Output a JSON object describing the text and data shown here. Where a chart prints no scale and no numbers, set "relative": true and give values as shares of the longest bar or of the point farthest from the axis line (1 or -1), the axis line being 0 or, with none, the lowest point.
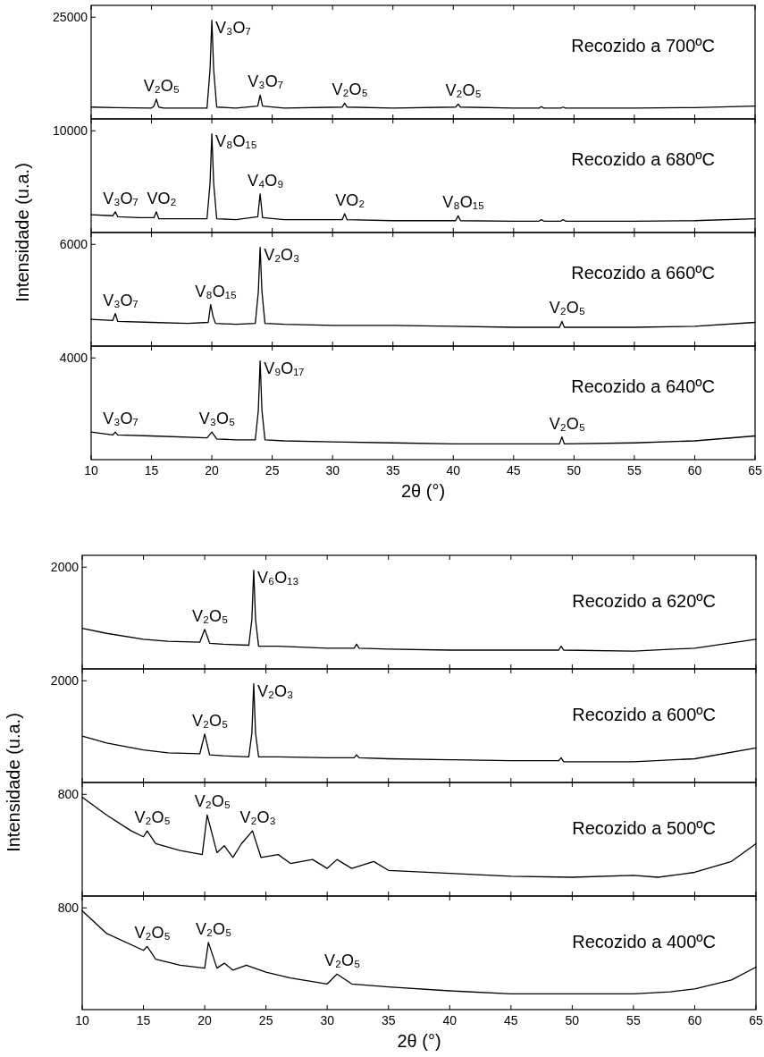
{
  "chart_data": [
    {
      "type": "line",
      "title": "Recozido a 700ºC",
      "ylabel": "Intensidade (u.a.)",
      "relative": true,
      "xlim": [
        10,
        65
      ],
      "xticks": [
        10,
        15,
        20,
        25,
        30,
        35,
        40,
        45,
        50,
        55,
        60,
        65
      ],
      "tick_labels": false,
      "x": [
        10,
        12,
        15,
        15.2,
        15.4,
        15.6,
        16,
        19.6,
        19.85,
        20,
        20.15,
        20.4,
        22,
        23.8,
        24,
        24.2,
        26,
        30.8,
        31,
        31.2,
        35,
        40.2,
        40.4,
        40.6,
        45,
        47.1,
        47.3,
        47.5,
        48.9,
        49.1,
        49.3,
        55,
        60,
        65
      ],
      "series": [
        {
          "color": "#000000",
          "values": [
            0.12,
            0.115,
            0.11,
            0.13,
            0.2,
            0.12,
            0.11,
            0.11,
            0.5,
            1,
            0.5,
            0.12,
            0.11,
            0.13,
            0.24,
            0.13,
            0.11,
            0.12,
            0.16,
            0.12,
            0.11,
            0.12,
            0.15,
            0.12,
            0.11,
            0.11,
            0.125,
            0.11,
            0.11,
            0.12,
            0.11,
            0.11,
            0.115,
            0.13
          ]
        }
      ],
      "annotations": [
        "25000",
        {
          "text": "V₂O₅",
          "x": 15.4,
          "y": 0.2
        },
        {
          "text": "V₃O₇",
          "x": 20,
          "y": 1
        },
        {
          "text": "V₃O₇",
          "x": 24,
          "y": 0.24
        },
        {
          "text": "V₂O₅",
          "x": 31,
          "y": 0.16
        },
        {
          "text": "V₂O₅",
          "x": 40.4,
          "y": 0.15
        }
      ]
    },
    {
      "type": "line",
      "title": "Recozido a 680ºC",
      "relative": true,
      "xlim": [
        10,
        65
      ],
      "xticks": [
        10,
        15,
        20,
        25,
        30,
        35,
        40,
        45,
        50,
        55,
        60,
        65
      ],
      "tick_labels": false,
      "x": [
        10,
        11.8,
        12,
        12.2,
        14,
        15.2,
        15.4,
        15.6,
        17,
        19.6,
        19.85,
        20,
        20.15,
        20.4,
        22,
        23.8,
        24,
        24.2,
        26,
        30.8,
        31,
        31.2,
        35,
        40.2,
        40.4,
        40.6,
        45,
        47.1,
        47.3,
        47.5,
        48.9,
        49.1,
        49.3,
        55,
        60,
        65
      ],
      "series": [
        {
          "color": "#000000",
          "values": [
            0.18,
            0.17,
            0.21,
            0.16,
            0.15,
            0.15,
            0.21,
            0.14,
            0.14,
            0.14,
            0.5,
            1,
            0.5,
            0.14,
            0.13,
            0.16,
            0.39,
            0.15,
            0.13,
            0.13,
            0.19,
            0.13,
            0.12,
            0.12,
            0.17,
            0.12,
            0.115,
            0.115,
            0.13,
            0.115,
            0.115,
            0.13,
            0.115,
            0.115,
            0.12,
            0.14
          ]
        }
      ],
      "annotations": [
        "10000",
        {
          "text": "V₃O₇",
          "x": 12,
          "y": 0.21
        },
        {
          "text": "VO₂",
          "x": 15.4,
          "y": 0.21
        },
        {
          "text": "V₈O₁₅",
          "x": 20,
          "y": 1
        },
        {
          "text": "V₄O₉",
          "x": 24,
          "y": 0.39
        },
        {
          "text": "VO₂",
          "x": 31,
          "y": 0.19
        },
        {
          "text": "V₈O₁₅",
          "x": 40.4,
          "y": 0.17
        }
      ]
    },
    {
      "type": "line",
      "title": "Recozido a 660ºC",
      "relative": true,
      "xlim": [
        10,
        65
      ],
      "xticks": [
        10,
        15,
        20,
        25,
        30,
        35,
        40,
        45,
        50,
        55,
        60,
        65
      ],
      "tick_labels": false,
      "x": [
        10,
        11.8,
        12,
        12.2,
        15,
        18,
        19.7,
        19.9,
        20.1,
        20.3,
        22,
        23.6,
        23.85,
        24,
        24.15,
        24.4,
        26,
        30,
        35,
        40,
        45,
        48.8,
        49,
        49.2,
        55,
        60,
        65
      ],
      "series": [
        {
          "color": "#000000",
          "values": [
            0.27,
            0.26,
            0.33,
            0.25,
            0.24,
            0.23,
            0.24,
            0.42,
            0.3,
            0.23,
            0.22,
            0.23,
            0.55,
            1,
            0.55,
            0.23,
            0.22,
            0.21,
            0.21,
            0.2,
            0.19,
            0.19,
            0.25,
            0.19,
            0.19,
            0.2,
            0.24
          ]
        }
      ],
      "annotations": [
        "6000",
        {
          "text": "V₃O₇",
          "x": 12,
          "y": 0.33
        },
        {
          "text": "V₈O₁₅",
          "x": 19.9,
          "y": 0.42
        },
        {
          "text": "V₂O₃",
          "x": 24,
          "y": 1
        },
        {
          "text": "V₂O₅",
          "x": 49,
          "y": 0.25
        }
      ]
    },
    {
      "type": "line",
      "title": "Recozido a 640ºC",
      "xlabel": "2θ (°)",
      "relative": true,
      "xlim": [
        10,
        65
      ],
      "xticks": [
        10,
        15,
        20,
        25,
        30,
        35,
        40,
        45,
        50,
        55,
        60,
        65
      ],
      "tick_labels": "x",
      "x": [
        10,
        11.8,
        12,
        12.2,
        15,
        19.6,
        20,
        20.4,
        22,
        23.6,
        23.85,
        24,
        24.15,
        24.4,
        26,
        30,
        35,
        40,
        45,
        48.8,
        49,
        49.2,
        55,
        60,
        65
      ],
      "series": [
        {
          "color": "#000000",
          "values": [
            0.28,
            0.25,
            0.28,
            0.25,
            0.24,
            0.22,
            0.28,
            0.21,
            0.2,
            0.2,
            0.5,
            1,
            0.5,
            0.2,
            0.19,
            0.18,
            0.17,
            0.16,
            0.16,
            0.16,
            0.23,
            0.16,
            0.17,
            0.19,
            0.24
          ]
        }
      ],
      "annotations": [
        "4000",
        {
          "text": "V₃O₇",
          "x": 12,
          "y": 0.28
        },
        {
          "text": "V₃O₅",
          "x": 20,
          "y": 0.28
        },
        {
          "text": "V₉O₁₇",
          "x": 24,
          "y": 1
        },
        {
          "text": "V₂O₅",
          "x": 49,
          "y": 0.23
        }
      ]
    },
    {
      "type": "line",
      "title": "Recozido a 620ºC",
      "ylabel": "Intensidade (u.a.)",
      "relative": true,
      "xlim": [
        10,
        65
      ],
      "xticks": [
        10,
        15,
        20,
        25,
        30,
        35,
        40,
        45,
        50,
        55,
        60,
        65
      ],
      "tick_labels": false,
      "x": [
        10,
        12,
        15,
        17,
        19.6,
        20,
        20.4,
        21.5,
        23.6,
        23.85,
        24,
        24.15,
        24.4,
        26,
        30,
        32.2,
        32.4,
        32.6,
        35,
        40,
        45,
        48.9,
        49.1,
        49.3,
        55,
        60,
        65
      ],
      "series": [
        {
          "color": "#000000",
          "values": [
            0.41,
            0.36,
            0.3,
            0.28,
            0.27,
            0.4,
            0.26,
            0.25,
            0.24,
            0.5,
            1,
            0.5,
            0.23,
            0.23,
            0.21,
            0.21,
            0.25,
            0.21,
            0.2,
            0.19,
            0.19,
            0.19,
            0.23,
            0.19,
            0.18,
            0.21,
            0.3
          ]
        }
      ],
      "annotations": [
        "2000",
        {
          "text": "V₂O₅",
          "x": 20,
          "y": 0.4
        },
        {
          "text": "V₆O₁₃",
          "x": 24,
          "y": 1
        }
      ]
    },
    {
      "type": "line",
      "title": "Recozido a 600ºC",
      "relative": true,
      "xlim": [
        10,
        65
      ],
      "xticks": [
        10,
        15,
        20,
        25,
        30,
        35,
        40,
        45,
        50,
        55,
        60,
        65
      ],
      "tick_labels": false,
      "x": [
        10,
        12,
        15,
        17,
        19.6,
        20,
        20.4,
        21.5,
        23.6,
        23.85,
        24,
        24.15,
        24.4,
        26,
        30,
        32.2,
        32.4,
        32.6,
        35,
        40,
        45,
        48.9,
        49.1,
        49.3,
        55,
        60,
        65
      ],
      "series": [
        {
          "color": "#000000",
          "values": [
            0.47,
            0.4,
            0.33,
            0.3,
            0.29,
            0.49,
            0.28,
            0.27,
            0.26,
            0.5,
            1,
            0.5,
            0.26,
            0.26,
            0.25,
            0.25,
            0.28,
            0.25,
            0.24,
            0.23,
            0.22,
            0.22,
            0.25,
            0.21,
            0.21,
            0.24,
            0.35
          ]
        }
      ],
      "annotations": [
        "2000",
        {
          "text": "V₂O₅",
          "x": 20,
          "y": 0.49
        },
        {
          "text": "V₂O₃",
          "x": 24,
          "y": 1
        }
      ]
    },
    {
      "type": "line",
      "title": "Recozido a 500ºC",
      "relative": true,
      "xlim": [
        10,
        65
      ],
      "xticks": [
        10,
        15,
        20,
        25,
        30,
        35,
        40,
        45,
        50,
        55,
        60,
        65
      ],
      "tick_labels": false,
      "x": [
        10,
        12,
        14,
        15,
        15.3,
        16,
        18,
        19.8,
        20.2,
        21,
        21.6,
        22.3,
        23,
        23.9,
        24.6,
        26,
        27,
        28.8,
        30,
        30.8,
        32,
        33.8,
        35,
        40,
        45,
        50,
        55,
        57,
        60,
        63,
        65
      ],
      "series": [
        {
          "color": "#000000",
          "values": [
            1,
            0.82,
            0.66,
            0.6,
            0.66,
            0.53,
            0.46,
            0.42,
            0.82,
            0.44,
            0.51,
            0.39,
            0.53,
            0.66,
            0.39,
            0.42,
            0.33,
            0.37,
            0.28,
            0.37,
            0.28,
            0.35,
            0.26,
            0.23,
            0.2,
            0.19,
            0.21,
            0.19,
            0.24,
            0.35,
            0.53
          ]
        }
      ],
      "annotations": [
        "800",
        {
          "text": "V₂O₅",
          "x": 15.3,
          "y": 0.66
        },
        {
          "text": "V₂O₅",
          "x": 20.2,
          "y": 0.82
        },
        {
          "text": "V₂O₃",
          "x": 23.9,
          "y": 0.66
        }
      ]
    },
    {
      "type": "line",
      "title": "Recozido a 400ºC",
      "xlabel": "2θ (°)",
      "relative": true,
      "xlim": [
        10,
        65
      ],
      "xticks": [
        10,
        15,
        20,
        25,
        30,
        35,
        40,
        45,
        50,
        55,
        60,
        65
      ],
      "tick_labels": "x",
      "x": [
        10,
        12,
        15,
        15.3,
        16,
        18,
        20,
        20.3,
        21,
        21.6,
        22.3,
        23.4,
        25,
        27,
        30,
        30.8,
        32,
        35,
        40,
        45,
        50,
        55,
        58,
        60,
        63,
        65
      ],
      "series": [
        {
          "color": "#000000",
          "values": [
            1,
            0.77,
            0.6,
            0.64,
            0.51,
            0.45,
            0.42,
            0.68,
            0.42,
            0.47,
            0.4,
            0.45,
            0.38,
            0.32,
            0.26,
            0.36,
            0.26,
            0.23,
            0.19,
            0.16,
            0.16,
            0.16,
            0.18,
            0.21,
            0.3,
            0.43
          ]
        }
      ],
      "annotations": [
        "800",
        {
          "text": "V₂O₅",
          "x": 15.3,
          "y": 0.64
        },
        {
          "text": "V₂O₅",
          "x": 20.3,
          "y": 0.68
        },
        {
          "text": "V₂O₅",
          "x": 30.8,
          "y": 0.36
        }
      ]
    }
  ]
}
